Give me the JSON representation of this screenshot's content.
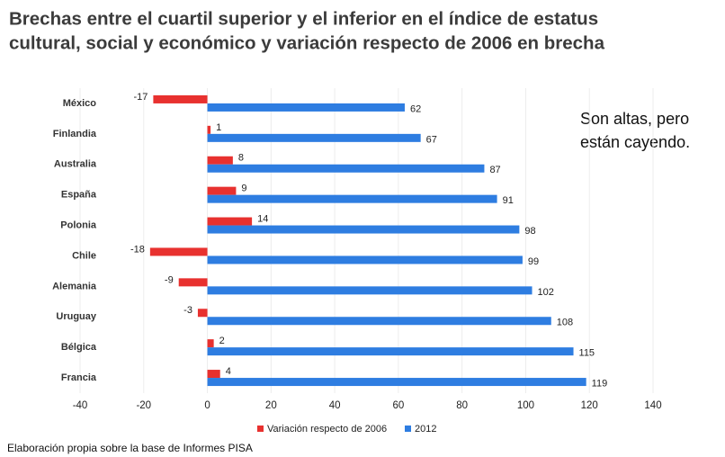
{
  "chart_data": {
    "type": "hbar",
    "title": [
      "Brechas entre el cuartil superior y el inferior en el índice de estatus",
      "cultural, social y económico y variación respecto de 2006 en brecha"
    ],
    "categories": [
      "México",
      "Finlandia",
      "Australia",
      "España",
      "Polonia",
      "Chile",
      "Alemania",
      "Uruguay",
      "Bélgica",
      "Francia"
    ],
    "series": [
      {
        "name": "Variación respecto de 2006",
        "color": "#e8312f",
        "values": [
          -17,
          1,
          8,
          9,
          14,
          -18,
          -9,
          -3,
          2,
          4
        ]
      },
      {
        "name": "2012",
        "color": "#2e7de1",
        "values": [
          62,
          67,
          87,
          91,
          98,
          99,
          102,
          108,
          115,
          119
        ]
      }
    ],
    "xlim": [
      -40,
      140
    ],
    "xticks": [
      -40,
      -20,
      0,
      20,
      40,
      60,
      80,
      100,
      120,
      140
    ],
    "grid": true,
    "legend": "bottom",
    "annotation": [
      "Son altas, pero",
      "están cayendo."
    ],
    "source": "Elaboración propia sobre la base de Informes PISA"
  }
}
